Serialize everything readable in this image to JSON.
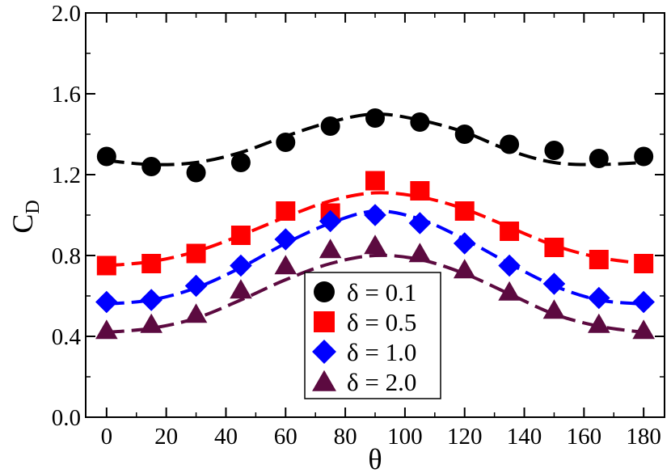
{
  "chart_data": {
    "type": "scatter",
    "title": "",
    "xlabel": "θ",
    "ylabel": "C",
    "ylabel_subscript": "D",
    "xlim": [
      -7,
      187
    ],
    "ylim": [
      0,
      2.0
    ],
    "xticks": [
      0,
      20,
      40,
      60,
      80,
      100,
      120,
      140,
      160,
      180
    ],
    "xtick_labels": [
      "0",
      "20",
      "40",
      "60",
      "80",
      "100",
      "120",
      "140",
      "160",
      "180"
    ],
    "yticks": [
      0.0,
      0.4,
      0.8,
      1.2,
      1.6,
      2.0
    ],
    "ytick_labels": [
      "0.0",
      "0.4",
      "0.8",
      "1.2",
      "1.6",
      "2.0"
    ],
    "legend_position": "bottom-center",
    "series": [
      {
        "name": "δ = 0.1",
        "color": "#000000",
        "marker": "circle",
        "x": [
          0,
          15,
          30,
          45,
          60,
          75,
          90,
          105,
          120,
          135,
          150,
          165,
          180
        ],
        "values": [
          1.29,
          1.24,
          1.21,
          1.26,
          1.36,
          1.44,
          1.48,
          1.46,
          1.4,
          1.35,
          1.32,
          1.28,
          1.29
        ],
        "fit": [
          1.27,
          1.25,
          1.26,
          1.31,
          1.39,
          1.46,
          1.5,
          1.47,
          1.41,
          1.32,
          1.26,
          1.25,
          1.26
        ]
      },
      {
        "name": "δ = 0.5",
        "color": "#ff0000",
        "marker": "square",
        "x": [
          0,
          15,
          30,
          45,
          60,
          75,
          90,
          105,
          120,
          135,
          150,
          165,
          180
        ],
        "values": [
          0.75,
          0.76,
          0.81,
          0.9,
          1.02,
          1.01,
          1.17,
          1.12,
          1.02,
          0.92,
          0.84,
          0.78,
          0.76
        ],
        "fit": [
          0.75,
          0.77,
          0.82,
          0.9,
          0.99,
          1.07,
          1.11,
          1.09,
          1.03,
          0.94,
          0.85,
          0.79,
          0.76
        ]
      },
      {
        "name": "δ = 1.0",
        "color": "#0000ff",
        "marker": "diamond",
        "x": [
          0,
          15,
          30,
          45,
          60,
          75,
          90,
          105,
          120,
          135,
          150,
          165,
          180
        ],
        "values": [
          0.57,
          0.58,
          0.65,
          0.75,
          0.88,
          0.97,
          1.0,
          0.96,
          0.86,
          0.75,
          0.66,
          0.59,
          0.57
        ],
        "fit": [
          0.56,
          0.58,
          0.64,
          0.74,
          0.86,
          0.96,
          1.02,
          0.98,
          0.88,
          0.76,
          0.65,
          0.58,
          0.56
        ]
      },
      {
        "name": "δ = 2.0",
        "color": "#5c0a40",
        "marker": "triangle",
        "x": [
          0,
          15,
          30,
          45,
          60,
          75,
          90,
          105,
          120,
          135,
          150,
          165,
          180
        ],
        "values": [
          0.43,
          0.46,
          0.51,
          0.63,
          0.75,
          0.83,
          0.85,
          0.81,
          0.73,
          0.62,
          0.53,
          0.46,
          0.43
        ],
        "fit": [
          0.42,
          0.44,
          0.49,
          0.58,
          0.68,
          0.76,
          0.8,
          0.78,
          0.71,
          0.61,
          0.51,
          0.45,
          0.42
        ]
      }
    ]
  }
}
